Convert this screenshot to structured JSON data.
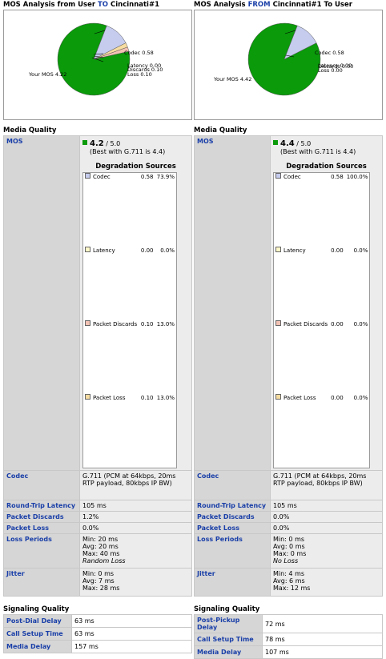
{
  "left": {
    "title_prefix": "MOS Analysis from User ",
    "title_highlight": "TO",
    "title_suffix": " Cincinnati#1",
    "pie": {
      "codec_label": "Codec 0.58",
      "latency_label": "Latency 0.00",
      "discards_label": "Discards 0.10",
      "loss_label": "Loss 0.10",
      "mos_label": "Your MOS 4.22",
      "slices": {
        "mos": 4.22,
        "codec": 0.58,
        "latency": 0.0,
        "discards": 0.1,
        "loss": 0.1
      }
    },
    "media_title": "Media Quality",
    "mos": {
      "label": "MOS",
      "value": "4.2",
      "max": " / 5.0",
      "best": "(Best with G.711 is 4.4)"
    },
    "degradation": {
      "title": "Degradation Sources",
      "rows": [
        {
          "name": "Codec",
          "value": "0.58",
          "pct": "73.9%",
          "color": "#c5ccee"
        },
        {
          "name": "Latency",
          "value": "0.00",
          "pct": "0.0%",
          "color": "#fff8c8"
        },
        {
          "name": "Packet Discards",
          "value": "0.10",
          "pct": "13.0%",
          "color": "#f2c2b4"
        },
        {
          "name": "Packet Loss",
          "value": "0.10",
          "pct": "13.0%",
          "color": "#f6dca0"
        }
      ]
    },
    "codec": {
      "label": "Codec",
      "value": "G.711 (PCM at 64kbps, 20ms RTP payload, 80kbps IP BW)"
    },
    "rtl": {
      "label": "Round-Trip Latency",
      "value": "105 ms"
    },
    "discards": {
      "label": "Packet Discards",
      "value": "1.2%"
    },
    "loss": {
      "label": "Packet Loss",
      "value": "0.0%"
    },
    "loss_periods": {
      "label": "Loss Periods",
      "min": "Min:  20 ms",
      "avg": "Avg:  20 ms",
      "max": "Max:  40 ms",
      "note": "Random Loss"
    },
    "jitter": {
      "label": "Jitter",
      "min": "Min: 0 ms",
      "avg": "Avg: 7 ms",
      "max": "Max: 28 ms"
    },
    "signaling_title": "Signaling Quality",
    "sig1": {
      "label": "Post-Dial Delay",
      "value": "63 ms"
    },
    "sig2": {
      "label": "Call Setup Time",
      "value": "63 ms"
    },
    "sig3": {
      "label": "Media Delay",
      "value": "157 ms"
    }
  },
  "right": {
    "title_prefix": "MOS Analysis ",
    "title_highlight": "FROM",
    "title_suffix": " Cincinnati#1 To User",
    "pie": {
      "codec_label": "Codec 0.58",
      "latency_label": "Latency 0.00",
      "discards_label": "Discards 0.00",
      "loss_label": "Loss 0.00",
      "mos_label": "Your MOS 4.42",
      "slices": {
        "mos": 4.42,
        "codec": 0.58,
        "latency": 0.0,
        "discards": 0.0,
        "loss": 0.0
      }
    },
    "media_title": "Media Quality",
    "mos": {
      "label": "MOS",
      "value": "4.4",
      "max": " / 5.0",
      "best": "(Best with G.711 is 4.4)"
    },
    "degradation": {
      "title": "Degradation Sources",
      "rows": [
        {
          "name": "Codec",
          "value": "0.58",
          "pct": "100.0%",
          "color": "#c5ccee"
        },
        {
          "name": "Latency",
          "value": "0.00",
          "pct": "0.0%",
          "color": "#fff8c8"
        },
        {
          "name": "Packet Discards",
          "value": "0.00",
          "pct": "0.0%",
          "color": "#f2c2b4"
        },
        {
          "name": "Packet Loss",
          "value": "0.00",
          "pct": "0.0%",
          "color": "#f6dca0"
        }
      ]
    },
    "codec": {
      "label": "Codec",
      "value": "G.711 (PCM at 64kbps, 20ms RTP payload, 80kbps IP BW)"
    },
    "rtl": {
      "label": "Round-Trip Latency",
      "value": "105 ms"
    },
    "discards": {
      "label": "Packet Discards",
      "value": "0.0%"
    },
    "loss": {
      "label": "Packet Loss",
      "value": "0.0%"
    },
    "loss_periods": {
      "label": "Loss Periods",
      "min": "Min: 0 ms",
      "avg": "Avg: 0 ms",
      "max": "Max: 0 ms",
      "note": "No Loss"
    },
    "jitter": {
      "label": "Jitter",
      "min": "Min: 4 ms",
      "avg": "Avg: 6 ms",
      "max": "Max: 12 ms"
    },
    "signaling_title": "Signaling Quality",
    "sig1": {
      "label": "Post-Pickup Delay",
      "value": "72 ms"
    },
    "sig2": {
      "label": "Call Setup Time",
      "value": "78 ms"
    },
    "sig3": {
      "label": "Media Delay",
      "value": "107 ms"
    }
  },
  "colors": {
    "mos": "#0a9a0a",
    "codec": "#c5ccee",
    "latency": "#fff8c8",
    "discards": "#f2c2b4",
    "loss": "#f6dca0",
    "label_blue": "#1a3fa8"
  }
}
